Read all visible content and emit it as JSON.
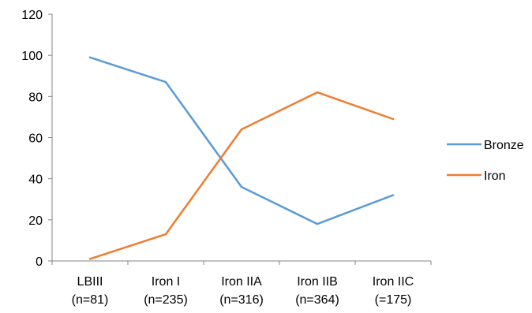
{
  "chart_data": {
    "type": "line",
    "title": "",
    "xlabel": "",
    "ylabel": "",
    "categories": [
      [
        "LBIII",
        "(n=81)"
      ],
      [
        "Iron I",
        "(n=235)"
      ],
      [
        "Iron IIA",
        "(n=316)"
      ],
      [
        "Iron IIB",
        "(n=364)"
      ],
      [
        "Iron IIC",
        "(=175)"
      ]
    ],
    "ylim": [
      0,
      120
    ],
    "yticks": [
      0,
      20,
      40,
      60,
      80,
      100,
      120
    ],
    "grid": false,
    "legend_position": "right",
    "series": [
      {
        "name": "Bronze",
        "color": "#5b9bd5",
        "values": [
          99,
          87,
          36,
          18,
          32
        ]
      },
      {
        "name": "Iron",
        "color": "#ed7d31",
        "values": [
          1,
          13,
          64,
          82,
          69
        ]
      }
    ]
  }
}
